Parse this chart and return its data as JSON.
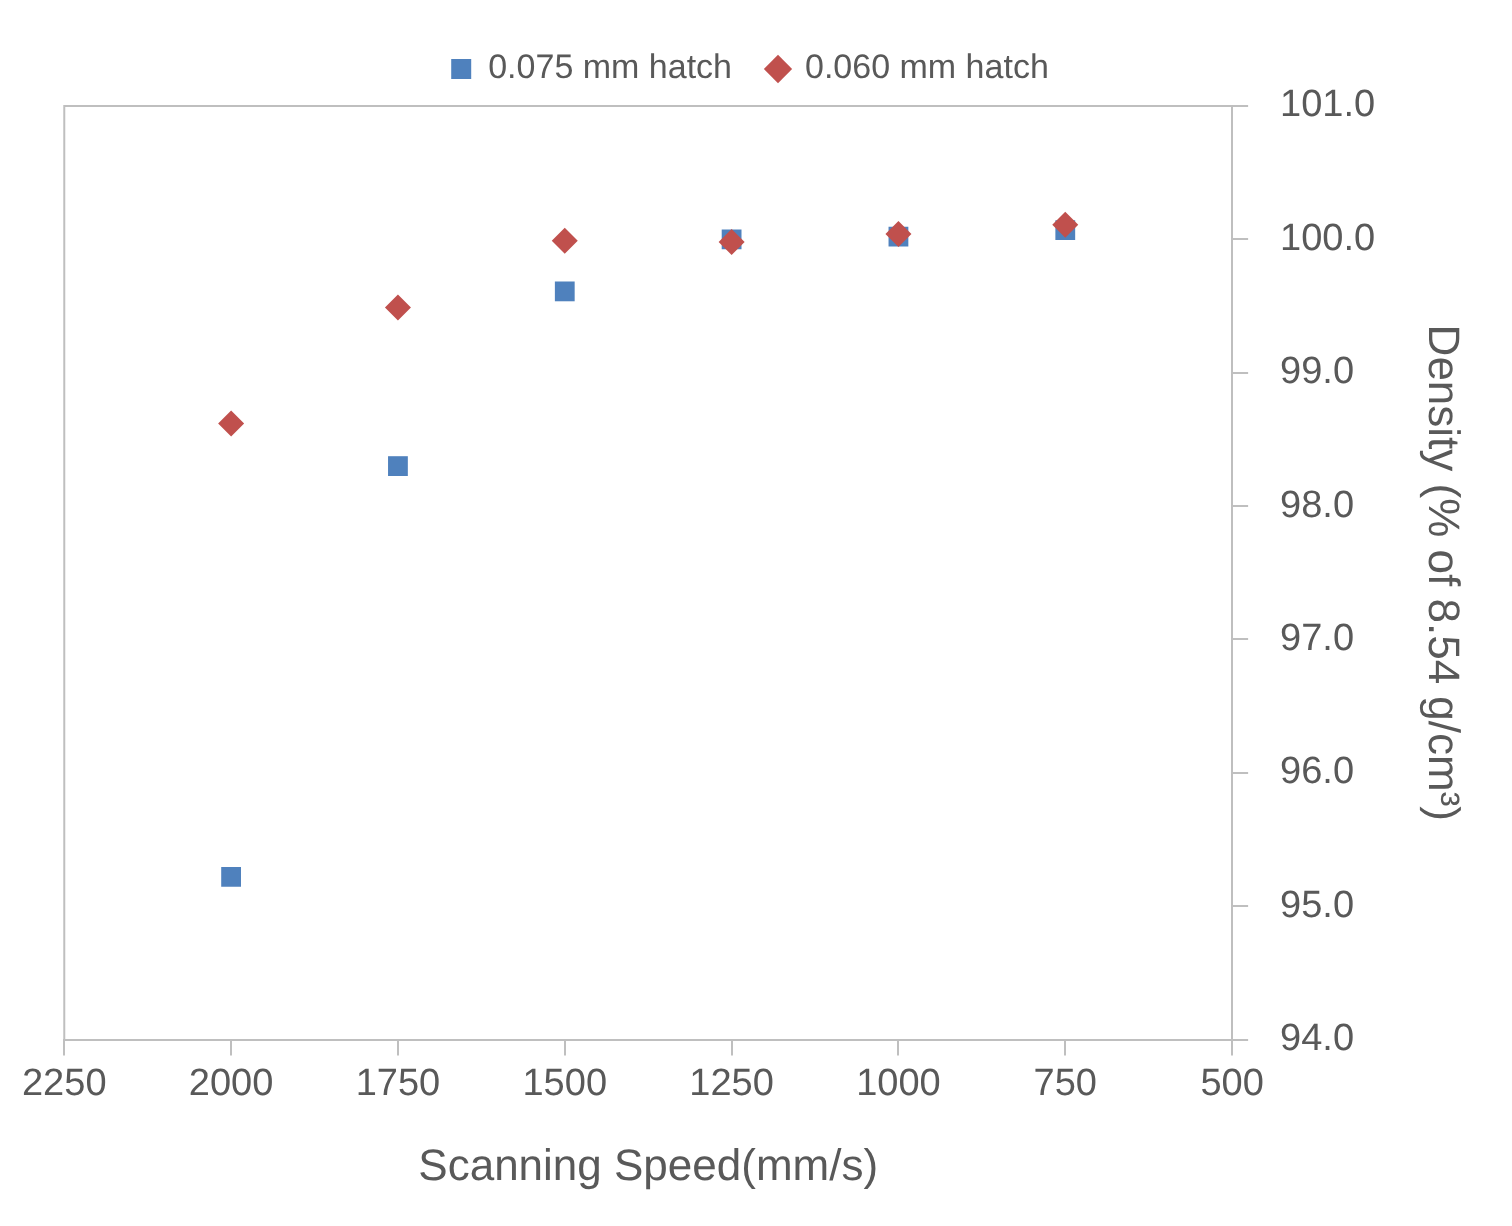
{
  "chart_data": {
    "type": "scatter",
    "xlabel": "Scanning Speed(mm/s)",
    "ylabel": "Density (% of 8.54 g/cm³)",
    "x": [
      2000,
      1750,
      1500,
      1250,
      1000,
      750
    ],
    "series": [
      {
        "name": "0.075 mm hatch",
        "color": "#4f81bd",
        "marker": "square",
        "values": [
          95.22,
          98.3,
          99.61,
          100.0,
          100.02,
          100.07
        ]
      },
      {
        "name": "0.060 mm hatch",
        "color": "#c0504d",
        "marker": "diamond",
        "values": [
          98.62,
          99.49,
          99.99,
          99.98,
          100.04,
          100.11
        ]
      }
    ],
    "xlim": [
      2250,
      500
    ],
    "xticks": [
      2250,
      2000,
      1750,
      1500,
      1250,
      1000,
      750,
      500
    ],
    "ylim": [
      94,
      101
    ],
    "yticks": [
      {
        "value": 94,
        "label": "94.0"
      },
      {
        "value": 95,
        "label": "95.0"
      },
      {
        "value": 96,
        "label": "96.0"
      },
      {
        "value": 97,
        "label": "97.0"
      },
      {
        "value": 98,
        "label": "98.0"
      },
      {
        "value": 99,
        "label": "99.0"
      },
      {
        "value": 100,
        "label": "100.0"
      },
      {
        "value": 101,
        "label": "101.0"
      }
    ],
    "grid": false,
    "legend": "top"
  }
}
